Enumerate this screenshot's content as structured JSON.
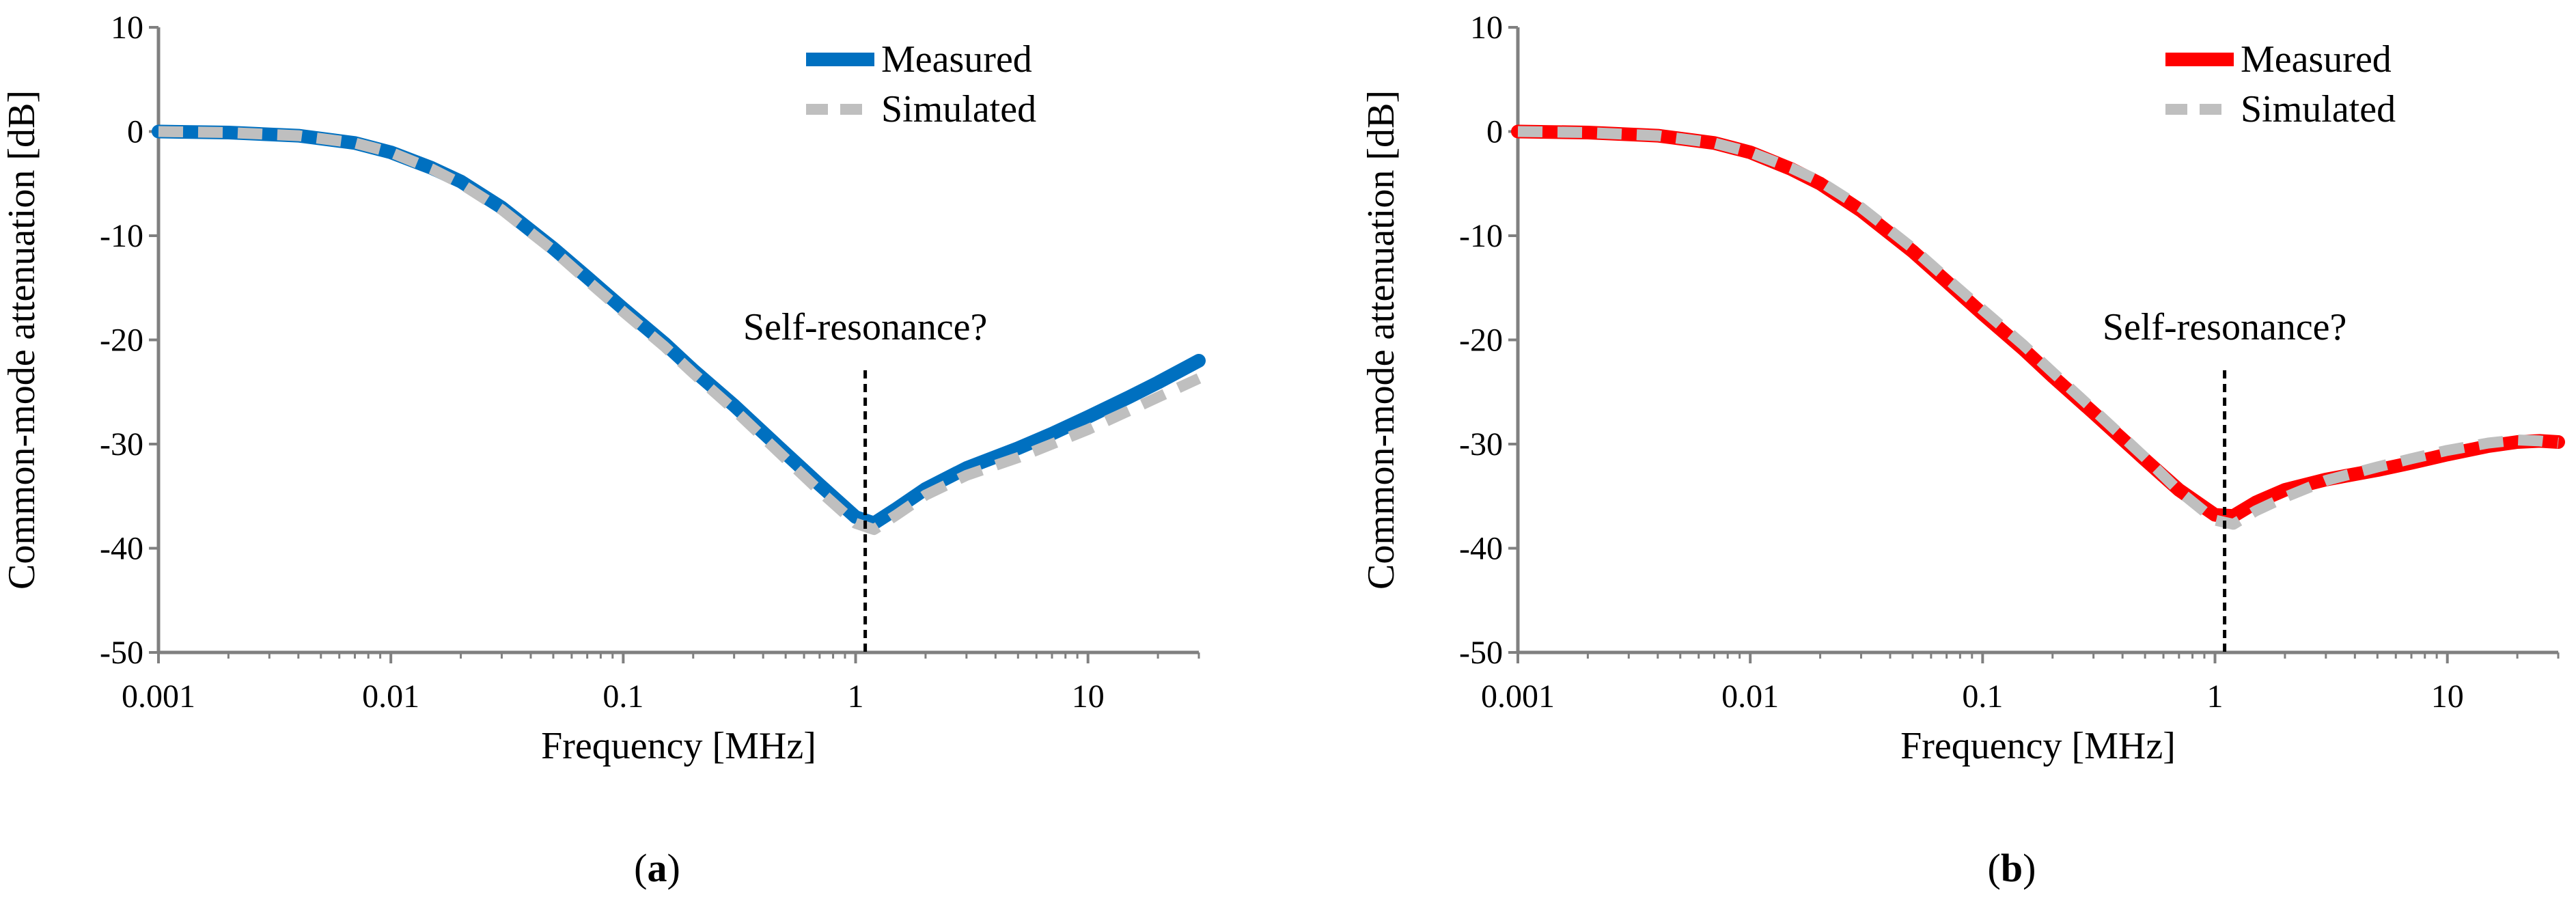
{
  "chart_data": [
    {
      "type": "line",
      "panel_label": "(a)",
      "xlabel": "Frequency [MHz]",
      "ylabel": "Common-mode attenuation [dB]",
      "xscale": "log",
      "xlim": [
        0.001,
        30
      ],
      "ylim": [
        -50,
        10
      ],
      "xticks": [
        0.001,
        0.01,
        0.1,
        1,
        10
      ],
      "xtick_labels": [
        "0.001",
        "0.01",
        "0.1",
        "1",
        "10"
      ],
      "yticks": [
        10,
        0,
        -10,
        -20,
        -30,
        -40,
        -50
      ],
      "ytick_labels": [
        "10",
        "0",
        "-10",
        "-20",
        "-30",
        "-40",
        "-50"
      ],
      "grid": false,
      "legend_position": "top-right",
      "annotation": {
        "text": "Self-resonance?",
        "x": 1.1
      },
      "series": [
        {
          "name": "Measured",
          "color": "#0070C0",
          "style": "solid",
          "x": [
            0.001,
            0.002,
            0.004,
            0.007,
            0.01,
            0.015,
            0.02,
            0.03,
            0.05,
            0.07,
            0.1,
            0.15,
            0.2,
            0.3,
            0.5,
            0.7,
            1.0,
            1.2,
            1.5,
            2,
            3,
            5,
            7,
            10,
            15,
            20,
            30
          ],
          "y": [
            0,
            -0.1,
            -0.4,
            -1.1,
            -2.0,
            -3.5,
            -4.8,
            -7.3,
            -11.2,
            -14,
            -17,
            -20.3,
            -22.9,
            -26.3,
            -30.9,
            -33.9,
            -37,
            -37.6,
            -36.2,
            -34.3,
            -32.3,
            -30.4,
            -29,
            -27.4,
            -25.5,
            -24.1,
            -22
          ]
        },
        {
          "name": "Simulated",
          "color": "#BFBFBF",
          "style": "dashed",
          "x": [
            0.001,
            0.002,
            0.004,
            0.007,
            0.01,
            0.015,
            0.02,
            0.03,
            0.05,
            0.07,
            0.1,
            0.15,
            0.2,
            0.3,
            0.5,
            0.7,
            1.0,
            1.2,
            1.5,
            2,
            3,
            5,
            7,
            10,
            15,
            20,
            30
          ],
          "y": [
            0,
            -0.1,
            -0.4,
            -1.1,
            -2.0,
            -3.6,
            -5.0,
            -7.5,
            -11.4,
            -14.3,
            -17.3,
            -20.6,
            -23.2,
            -26.7,
            -31.4,
            -34.5,
            -37.6,
            -38.2,
            -36.8,
            -34.9,
            -33,
            -31.3,
            -30,
            -28.6,
            -26.8,
            -25.5,
            -23.7
          ]
        }
      ]
    },
    {
      "type": "line",
      "panel_label": "(b)",
      "xlabel": "Frequency [MHz]",
      "ylabel": "Common-mode attenuation [dB]",
      "xscale": "log",
      "xlim": [
        0.001,
        30
      ],
      "ylim": [
        -50,
        10
      ],
      "xticks": [
        0.001,
        0.01,
        0.1,
        1,
        10
      ],
      "xtick_labels": [
        "0.001",
        "0.01",
        "0.1",
        "1",
        "10"
      ],
      "yticks": [
        10,
        0,
        -10,
        -20,
        -30,
        -40,
        -50
      ],
      "ytick_labels": [
        "10",
        "0",
        "-10",
        "-20",
        "-30",
        "-40",
        "-50"
      ],
      "grid": false,
      "legend_position": "top-right",
      "annotation": {
        "text": "Self-resonance?",
        "x": 1.1
      },
      "series": [
        {
          "name": "Measured",
          "color": "#FF0000",
          "style": "solid",
          "x": [
            0.001,
            0.002,
            0.004,
            0.007,
            0.01,
            0.015,
            0.02,
            0.03,
            0.05,
            0.07,
            0.1,
            0.15,
            0.2,
            0.3,
            0.5,
            0.7,
            1.0,
            1.2,
            1.5,
            2,
            3,
            5,
            7,
            10,
            15,
            20,
            25,
            30
          ],
          "y": [
            0,
            -0.1,
            -0.4,
            -1.1,
            -2.0,
            -3.6,
            -5.0,
            -7.6,
            -11.5,
            -14.4,
            -17.5,
            -20.9,
            -23.5,
            -27,
            -31.5,
            -34.4,
            -36.8,
            -36.9,
            -35.6,
            -34.4,
            -33.4,
            -32.5,
            -31.8,
            -31,
            -30.2,
            -29.8,
            -29.7,
            -29.8
          ]
        },
        {
          "name": "Simulated",
          "color": "#BFBFBF",
          "style": "dashed",
          "x": [
            0.001,
            0.002,
            0.004,
            0.007,
            0.01,
            0.015,
            0.02,
            0.03,
            0.05,
            0.07,
            0.1,
            0.15,
            0.2,
            0.3,
            0.5,
            0.7,
            1.0,
            1.2,
            1.5,
            2,
            3,
            5,
            7,
            10,
            15,
            20,
            25,
            30
          ],
          "y": [
            0,
            -0.1,
            -0.4,
            -1.1,
            -2.0,
            -3.5,
            -4.8,
            -7.3,
            -11.2,
            -14.1,
            -17.1,
            -20.5,
            -23.1,
            -26.7,
            -31.3,
            -34.5,
            -37.3,
            -37.7,
            -36.4,
            -35.1,
            -33.5,
            -32.2,
            -31.4,
            -30.6,
            -29.9,
            -29.6,
            -29.7,
            -29.9
          ]
        }
      ]
    }
  ]
}
